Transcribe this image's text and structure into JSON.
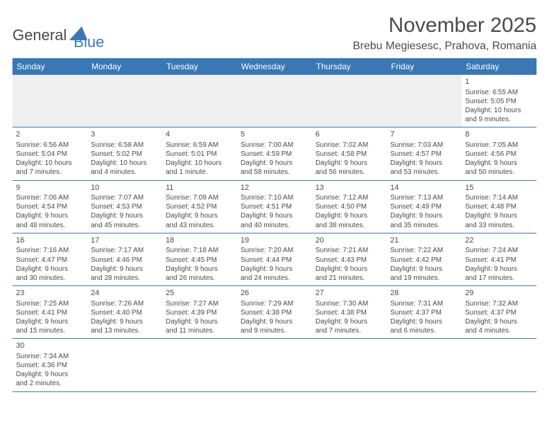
{
  "logo": {
    "general": "General",
    "blue": "Blue"
  },
  "title": "November 2025",
  "location": "Brebu Megiesesc, Prahova, Romania",
  "colors": {
    "header_bg": "#3a78b5",
    "header_text": "#ffffff",
    "grid_border": "#3a78b5",
    "body_text": "#4a4a4a",
    "blank_bg": "#efefef",
    "page_bg": "#ffffff"
  },
  "columns": [
    "Sunday",
    "Monday",
    "Tuesday",
    "Wednesday",
    "Thursday",
    "Friday",
    "Saturday"
  ],
  "weeks": [
    [
      null,
      null,
      null,
      null,
      null,
      null,
      {
        "n": "1",
        "sr": "Sunrise: 6:55 AM",
        "ss": "Sunset: 5:05 PM",
        "d1": "Daylight: 10 hours",
        "d2": "and 9 minutes."
      }
    ],
    [
      {
        "n": "2",
        "sr": "Sunrise: 6:56 AM",
        "ss": "Sunset: 5:04 PM",
        "d1": "Daylight: 10 hours",
        "d2": "and 7 minutes."
      },
      {
        "n": "3",
        "sr": "Sunrise: 6:58 AM",
        "ss": "Sunset: 5:02 PM",
        "d1": "Daylight: 10 hours",
        "d2": "and 4 minutes."
      },
      {
        "n": "4",
        "sr": "Sunrise: 6:59 AM",
        "ss": "Sunset: 5:01 PM",
        "d1": "Daylight: 10 hours",
        "d2": "and 1 minute."
      },
      {
        "n": "5",
        "sr": "Sunrise: 7:00 AM",
        "ss": "Sunset: 4:59 PM",
        "d1": "Daylight: 9 hours",
        "d2": "and 58 minutes."
      },
      {
        "n": "6",
        "sr": "Sunrise: 7:02 AM",
        "ss": "Sunset: 4:58 PM",
        "d1": "Daylight: 9 hours",
        "d2": "and 56 minutes."
      },
      {
        "n": "7",
        "sr": "Sunrise: 7:03 AM",
        "ss": "Sunset: 4:57 PM",
        "d1": "Daylight: 9 hours",
        "d2": "and 53 minutes."
      },
      {
        "n": "8",
        "sr": "Sunrise: 7:05 AM",
        "ss": "Sunset: 4:56 PM",
        "d1": "Daylight: 9 hours",
        "d2": "and 50 minutes."
      }
    ],
    [
      {
        "n": "9",
        "sr": "Sunrise: 7:06 AM",
        "ss": "Sunset: 4:54 PM",
        "d1": "Daylight: 9 hours",
        "d2": "and 48 minutes."
      },
      {
        "n": "10",
        "sr": "Sunrise: 7:07 AM",
        "ss": "Sunset: 4:53 PM",
        "d1": "Daylight: 9 hours",
        "d2": "and 45 minutes."
      },
      {
        "n": "11",
        "sr": "Sunrise: 7:09 AM",
        "ss": "Sunset: 4:52 PM",
        "d1": "Daylight: 9 hours",
        "d2": "and 43 minutes."
      },
      {
        "n": "12",
        "sr": "Sunrise: 7:10 AM",
        "ss": "Sunset: 4:51 PM",
        "d1": "Daylight: 9 hours",
        "d2": "and 40 minutes."
      },
      {
        "n": "13",
        "sr": "Sunrise: 7:12 AM",
        "ss": "Sunset: 4:50 PM",
        "d1": "Daylight: 9 hours",
        "d2": "and 38 minutes."
      },
      {
        "n": "14",
        "sr": "Sunrise: 7:13 AM",
        "ss": "Sunset: 4:49 PM",
        "d1": "Daylight: 9 hours",
        "d2": "and 35 minutes."
      },
      {
        "n": "15",
        "sr": "Sunrise: 7:14 AM",
        "ss": "Sunset: 4:48 PM",
        "d1": "Daylight: 9 hours",
        "d2": "and 33 minutes."
      }
    ],
    [
      {
        "n": "16",
        "sr": "Sunrise: 7:16 AM",
        "ss": "Sunset: 4:47 PM",
        "d1": "Daylight: 9 hours",
        "d2": "and 30 minutes."
      },
      {
        "n": "17",
        "sr": "Sunrise: 7:17 AM",
        "ss": "Sunset: 4:46 PM",
        "d1": "Daylight: 9 hours",
        "d2": "and 28 minutes."
      },
      {
        "n": "18",
        "sr": "Sunrise: 7:18 AM",
        "ss": "Sunset: 4:45 PM",
        "d1": "Daylight: 9 hours",
        "d2": "and 26 minutes."
      },
      {
        "n": "19",
        "sr": "Sunrise: 7:20 AM",
        "ss": "Sunset: 4:44 PM",
        "d1": "Daylight: 9 hours",
        "d2": "and 24 minutes."
      },
      {
        "n": "20",
        "sr": "Sunrise: 7:21 AM",
        "ss": "Sunset: 4:43 PM",
        "d1": "Daylight: 9 hours",
        "d2": "and 21 minutes."
      },
      {
        "n": "21",
        "sr": "Sunrise: 7:22 AM",
        "ss": "Sunset: 4:42 PM",
        "d1": "Daylight: 9 hours",
        "d2": "and 19 minutes."
      },
      {
        "n": "22",
        "sr": "Sunrise: 7:24 AM",
        "ss": "Sunset: 4:41 PM",
        "d1": "Daylight: 9 hours",
        "d2": "and 17 minutes."
      }
    ],
    [
      {
        "n": "23",
        "sr": "Sunrise: 7:25 AM",
        "ss": "Sunset: 4:41 PM",
        "d1": "Daylight: 9 hours",
        "d2": "and 15 minutes."
      },
      {
        "n": "24",
        "sr": "Sunrise: 7:26 AM",
        "ss": "Sunset: 4:40 PM",
        "d1": "Daylight: 9 hours",
        "d2": "and 13 minutes."
      },
      {
        "n": "25",
        "sr": "Sunrise: 7:27 AM",
        "ss": "Sunset: 4:39 PM",
        "d1": "Daylight: 9 hours",
        "d2": "and 11 minutes."
      },
      {
        "n": "26",
        "sr": "Sunrise: 7:29 AM",
        "ss": "Sunset: 4:38 PM",
        "d1": "Daylight: 9 hours",
        "d2": "and 9 minutes."
      },
      {
        "n": "27",
        "sr": "Sunrise: 7:30 AM",
        "ss": "Sunset: 4:38 PM",
        "d1": "Daylight: 9 hours",
        "d2": "and 7 minutes."
      },
      {
        "n": "28",
        "sr": "Sunrise: 7:31 AM",
        "ss": "Sunset: 4:37 PM",
        "d1": "Daylight: 9 hours",
        "d2": "and 6 minutes."
      },
      {
        "n": "29",
        "sr": "Sunrise: 7:32 AM",
        "ss": "Sunset: 4:37 PM",
        "d1": "Daylight: 9 hours",
        "d2": "and 4 minutes."
      }
    ],
    [
      {
        "n": "30",
        "sr": "Sunrise: 7:34 AM",
        "ss": "Sunset: 4:36 PM",
        "d1": "Daylight: 9 hours",
        "d2": "and 2 minutes."
      },
      null,
      null,
      null,
      null,
      null,
      null
    ]
  ]
}
